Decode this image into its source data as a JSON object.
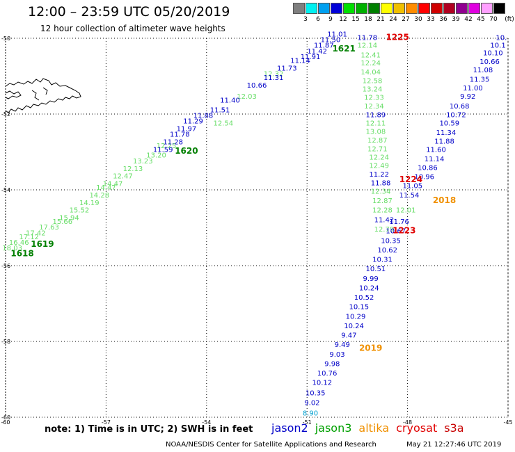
{
  "header": {
    "title": "12:00 – 23:59 UTC 05/20/2019",
    "subtitle": "12 hour collection of altimeter wave heights"
  },
  "legend": {
    "unit": "(ft)",
    "bins": [
      {
        "label": "3",
        "color": "#7f7f7f"
      },
      {
        "label": "6",
        "color": "#00f0f0"
      },
      {
        "label": "9",
        "color": "#00a0f0"
      },
      {
        "label": "12",
        "color": "#0000d8"
      },
      {
        "label": "15",
        "color": "#00e000"
      },
      {
        "label": "18",
        "color": "#00b000"
      },
      {
        "label": "21",
        "color": "#008000"
      },
      {
        "label": "24",
        "color": "#ffff00"
      },
      {
        "label": "27",
        "color": "#f0c000"
      },
      {
        "label": "30",
        "color": "#ff8c00"
      },
      {
        "label": "33",
        "color": "#ff0000"
      },
      {
        "label": "36",
        "color": "#d00000"
      },
      {
        "label": "39",
        "color": "#b00020"
      },
      {
        "label": "42",
        "color": "#900090"
      },
      {
        "label": "45",
        "color": "#e000e0"
      },
      {
        "label": "70",
        "color": "#ffa0ff"
      },
      {
        "label": "",
        "color": "#000000"
      }
    ]
  },
  "axes": {
    "lat_labels": [
      "-50",
      "-52",
      "-54",
      "-56",
      "-58",
      "-60"
    ],
    "lon_labels": [
      "-60",
      "-57",
      "-54",
      "-51",
      "-48",
      "-45"
    ],
    "lat_range": [
      -60,
      -50
    ],
    "lon_range": [
      -60,
      -45
    ],
    "grid": "dotted"
  },
  "colors": {
    "jason2": "#0000c8",
    "jason3_light": "#66dd66",
    "jason3_dark": "#008000",
    "pass_dark": "#008000",
    "pass_red": "#e00000",
    "pass_orange": "#f09000",
    "cyan": "#00a0d0"
  },
  "tracks": [
    {
      "style": "jason3_light",
      "points": [
        {
          "lon": -59.8,
          "lat": -55.6,
          "v": "18.03"
        },
        {
          "lon": -59.6,
          "lat": -55.45,
          "v": "16.46"
        },
        {
          "lon": -59.3,
          "lat": -55.3,
          "v": "17.12"
        },
        {
          "lon": -59.1,
          "lat": -55.2,
          "v": "17.42"
        },
        {
          "lon": -58.7,
          "lat": -55.05,
          "v": "17.63"
        },
        {
          "lon": -58.3,
          "lat": -54.9,
          "v": "15.66"
        },
        {
          "lon": -58.1,
          "lat": -54.8,
          "v": "15.94"
        },
        {
          "lon": -57.8,
          "lat": -54.6,
          "v": "15.52"
        },
        {
          "lon": -57.5,
          "lat": -54.4,
          "v": "14.19"
        },
        {
          "lon": -57.2,
          "lat": -54.2,
          "v": "14.28"
        },
        {
          "lon": -57.0,
          "lat": -54.0,
          "v": "14.47"
        },
        {
          "lon": -56.8,
          "lat": -53.9,
          "v": "14.47"
        },
        {
          "lon": -56.5,
          "lat": -53.7,
          "v": "12.47"
        },
        {
          "lon": -56.2,
          "lat": -53.5,
          "v": "12.13"
        },
        {
          "lon": -55.9,
          "lat": -53.3,
          "v": "13.23"
        },
        {
          "lon": -55.5,
          "lat": -53.15,
          "v": "13.20"
        },
        {
          "lon": -55.2,
          "lat": -52.9,
          "v": "12.25"
        },
        {
          "lon": -53.5,
          "lat": -52.3,
          "v": "12.54"
        },
        {
          "lon": -52.8,
          "lat": -51.6,
          "v": "12.03"
        },
        {
          "lon": -52.0,
          "lat": -51.0,
          "v": "12.32"
        }
      ]
    },
    {
      "style": "jason2",
      "points": [
        {
          "lon": -55.3,
          "lat": -53.0,
          "v": "11.59"
        },
        {
          "lon": -55.0,
          "lat": -52.8,
          "v": "11.28"
        },
        {
          "lon": -54.8,
          "lat": -52.6,
          "v": "11.78"
        },
        {
          "lon": -54.6,
          "lat": -52.45,
          "v": "11.97"
        },
        {
          "lon": -54.4,
          "lat": -52.25,
          "v": "11.29"
        },
        {
          "lon": -54.1,
          "lat": -52.1,
          "v": "11.88"
        },
        {
          "lon": -53.6,
          "lat": -51.95,
          "v": "11.51"
        },
        {
          "lon": -53.3,
          "lat": -51.7,
          "v": "11.40"
        },
        {
          "lon": -52.5,
          "lat": -51.3,
          "v": "10.66"
        },
        {
          "lon": -52.0,
          "lat": -51.1,
          "v": "11.31"
        },
        {
          "lon": -51.6,
          "lat": -50.85,
          "v": "11.73"
        },
        {
          "lon": -51.2,
          "lat": -50.65,
          "v": "11.14"
        },
        {
          "lon": -50.9,
          "lat": -50.55,
          "v": "11.91"
        },
        {
          "lon": -50.7,
          "lat": -50.4,
          "v": "11.42"
        },
        {
          "lon": -50.5,
          "lat": -50.25,
          "v": "11.87"
        },
        {
          "lon": -50.3,
          "lat": -50.1,
          "v": "11.50"
        },
        {
          "lon": -50.1,
          "lat": -49.95,
          "v": "11.01"
        }
      ]
    },
    {
      "style": "jason3_light",
      "points": [
        {
          "lon": -49.2,
          "lat": -50.25,
          "v": "12.14"
        },
        {
          "lon": -49.1,
          "lat": -50.5,
          "v": "12.41"
        },
        {
          "lon": -49.1,
          "lat": -50.72,
          "v": "12.24"
        },
        {
          "lon": -49.1,
          "lat": -50.95,
          "v": "14.04"
        },
        {
          "lon": -49.05,
          "lat": -51.18,
          "v": "12.58"
        },
        {
          "lon": -49.05,
          "lat": -51.4,
          "v": "13.24"
        },
        {
          "lon": -49.0,
          "lat": -51.62,
          "v": "12.33"
        },
        {
          "lon": -49.0,
          "lat": -51.85,
          "v": "12.34"
        },
        {
          "lon": -48.95,
          "lat": -52.3,
          "v": "12.11"
        },
        {
          "lon": -48.95,
          "lat": -52.52,
          "v": "13.08"
        },
        {
          "lon": -48.9,
          "lat": -52.75,
          "v": "12.87"
        },
        {
          "lon": -48.9,
          "lat": -52.98,
          "v": "12.71"
        },
        {
          "lon": -48.85,
          "lat": -53.2,
          "v": "12.24"
        },
        {
          "lon": -48.85,
          "lat": -53.42,
          "v": "12.49"
        },
        {
          "lon": -48.8,
          "lat": -54.1,
          "v": "12.34"
        },
        {
          "lon": -48.75,
          "lat": -54.35,
          "v": "12.87"
        },
        {
          "lon": -48.75,
          "lat": -54.6,
          "v": "12.28"
        },
        {
          "lon": -48.7,
          "lat": -55.1,
          "v": "12.79"
        }
      ]
    },
    {
      "style": "jason2",
      "points": [
        {
          "lon": -49.2,
          "lat": -50.05,
          "v": "11.78"
        },
        {
          "lon": -48.95,
          "lat": -52.08,
          "v": "11.89"
        },
        {
          "lon": -48.85,
          "lat": -53.65,
          "v": "11.22"
        },
        {
          "lon": -48.8,
          "lat": -53.88,
          "v": "11.88"
        },
        {
          "lon": -48.7,
          "lat": -54.85,
          "v": "11.42"
        }
      ]
    },
    {
      "style": "jason2",
      "points": [
        {
          "lon": -45.2,
          "lat": -50.05,
          "v": "10."
        },
        {
          "lon": -45.3,
          "lat": -50.25,
          "v": "10.1"
        },
        {
          "lon": -45.45,
          "lat": -50.45,
          "v": "10.10"
        },
        {
          "lon": -45.55,
          "lat": -50.68,
          "v": "10.66"
        },
        {
          "lon": -45.75,
          "lat": -50.9,
          "v": "11.08"
        },
        {
          "lon": -45.85,
          "lat": -51.15,
          "v": "11.35"
        },
        {
          "lon": -46.05,
          "lat": -51.38,
          "v": "11.00"
        },
        {
          "lon": -46.2,
          "lat": -51.6,
          "v": "9.92"
        },
        {
          "lon": -46.45,
          "lat": -51.85,
          "v": "10.68"
        },
        {
          "lon": -46.55,
          "lat": -52.08,
          "v": "10.72"
        },
        {
          "lon": -46.75,
          "lat": -52.3,
          "v": "10.59"
        },
        {
          "lon": -46.85,
          "lat": -52.55,
          "v": "11.34"
        },
        {
          "lon": -46.9,
          "lat": -52.78,
          "v": "11.88"
        },
        {
          "lon": -47.15,
          "lat": -53.0,
          "v": "11.60"
        },
        {
          "lon": -47.2,
          "lat": -53.25,
          "v": "11.14"
        },
        {
          "lon": -47.4,
          "lat": -53.48,
          "v": "10.86"
        },
        {
          "lon": -47.5,
          "lat": -53.72,
          "v": "10.96"
        },
        {
          "lon": -47.85,
          "lat": -53.95,
          "v": "11.05"
        },
        {
          "lon": -47.95,
          "lat": -54.2,
          "v": "11.54"
        },
        {
          "lon": -48.25,
          "lat": -54.9,
          "v": "11.76"
        },
        {
          "lon": -48.35,
          "lat": -55.15,
          "v": "10.67"
        },
        {
          "lon": -48.5,
          "lat": -55.4,
          "v": "10.35"
        },
        {
          "lon": -48.6,
          "lat": -55.65,
          "v": "10.62"
        },
        {
          "lon": -48.75,
          "lat": -55.9,
          "v": "10.31"
        },
        {
          "lon": -48.95,
          "lat": -56.15,
          "v": "10.51"
        },
        {
          "lon": -49.1,
          "lat": -56.4,
          "v": "9.99"
        },
        {
          "lon": -49.15,
          "lat": -56.65,
          "v": "10.24"
        },
        {
          "lon": -49.3,
          "lat": -56.9,
          "v": "10.52"
        },
        {
          "lon": -49.45,
          "lat": -57.15,
          "v": "10.15"
        },
        {
          "lon": -49.55,
          "lat": -57.4,
          "v": "10.29"
        },
        {
          "lon": -49.6,
          "lat": -57.65,
          "v": "10.24"
        },
        {
          "lon": -49.75,
          "lat": -57.9,
          "v": "9.47"
        },
        {
          "lon": -49.95,
          "lat": -58.15,
          "v": "9.49"
        },
        {
          "lon": -50.1,
          "lat": -58.4,
          "v": "9.03"
        },
        {
          "lon": -50.25,
          "lat": -58.65,
          "v": "9.98"
        },
        {
          "lon": -50.4,
          "lat": -58.9,
          "v": "10.76"
        },
        {
          "lon": -50.55,
          "lat": -59.15,
          "v": "10.12"
        },
        {
          "lon": -50.75,
          "lat": -59.42,
          "v": "10.35"
        },
        {
          "lon": -50.85,
          "lat": -59.68,
          "v": "9.02"
        }
      ]
    },
    {
      "style": "jason3_light",
      "points": [
        {
          "lon": -48.05,
          "lat": -54.6,
          "v": "12.01"
        }
      ]
    },
    {
      "style": "cyan",
      "points": [
        {
          "lon": -50.9,
          "lat": -59.95,
          "v": "8.90"
        }
      ]
    }
  ],
  "pass_labels": [
    {
      "lon": -59.5,
      "lat": -55.75,
      "v": "1618",
      "style": "pass_dark"
    },
    {
      "lon": -58.9,
      "lat": -55.5,
      "v": "1619",
      "style": "pass_dark"
    },
    {
      "lon": -54.6,
      "lat": -53.05,
      "v": "1620",
      "style": "pass_dark"
    },
    {
      "lon": -49.9,
      "lat": -50.35,
      "v": "1621",
      "style": "pass_dark"
    },
    {
      "lon": -48.3,
      "lat": -50.05,
      "v": "1225",
      "style": "pass_red"
    },
    {
      "lon": -47.9,
      "lat": -53.8,
      "v": "1224",
      "style": "pass_red"
    },
    {
      "lon": -48.1,
      "lat": -55.15,
      "v": "1223",
      "style": "pass_red"
    },
    {
      "lon": -46.9,
      "lat": -54.35,
      "v": "2018",
      "style": "pass_orange"
    },
    {
      "lon": -49.1,
      "lat": -58.25,
      "v": "2019",
      "style": "pass_orange"
    }
  ],
  "notes": {
    "note": "note:  1) Time is in UTC;  2) SWH is in feet"
  },
  "satellites": [
    {
      "name": "jason2",
      "color": "#0000c8"
    },
    {
      "name": "jason3",
      "color": "#00a000"
    },
    {
      "name": "altika",
      "color": "#f09000"
    },
    {
      "name": "cryosat",
      "color": "#e00000"
    },
    {
      "name": "s3a",
      "color": "#c80000"
    }
  ],
  "footer": {
    "credit": "NOAA/NESDIS Center for Satellite Applications and Research",
    "timestamp": "May 21 12:27:46 UTC 2019"
  }
}
